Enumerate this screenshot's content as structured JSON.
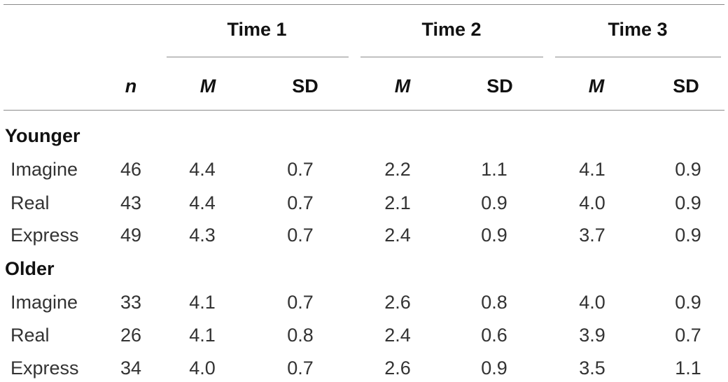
{
  "header": {
    "groups": [
      "Time 1",
      "Time 2",
      "Time 3"
    ],
    "n_label": "n",
    "mean_label": "M",
    "sd_label": "SD"
  },
  "sections": [
    {
      "label": "Younger",
      "rows": [
        {
          "condition": "Imagine",
          "n": "46",
          "t1_m": "4.4",
          "t1_sd": "0.7",
          "t2_m": "2.2",
          "t2_sd": "1.1",
          "t3_m": "4.1",
          "t3_sd": "0.9"
        },
        {
          "condition": "Real",
          "n": "43",
          "t1_m": "4.4",
          "t1_sd": "0.7",
          "t2_m": "2.1",
          "t2_sd": "0.9",
          "t3_m": "4.0",
          "t3_sd": "0.9"
        },
        {
          "condition": "Express",
          "n": "49",
          "t1_m": "4.3",
          "t1_sd": "0.7",
          "t2_m": "2.4",
          "t2_sd": "0.9",
          "t3_m": "3.7",
          "t3_sd": "0.9"
        }
      ]
    },
    {
      "label": "Older",
      "rows": [
        {
          "condition": "Imagine",
          "n": "33",
          "t1_m": "4.1",
          "t1_sd": "0.7",
          "t2_m": "2.6",
          "t2_sd": "0.8",
          "t3_m": "4.0",
          "t3_sd": "0.9"
        },
        {
          "condition": "Real",
          "n": "26",
          "t1_m": "4.1",
          "t1_sd": "0.8",
          "t2_m": "2.4",
          "t2_sd": "0.6",
          "t3_m": "3.9",
          "t3_sd": "0.7"
        },
        {
          "condition": "Express",
          "n": "34",
          "t1_m": "4.0",
          "t1_sd": "0.7",
          "t2_m": "2.6",
          "t2_sd": "0.9",
          "t3_m": "3.5",
          "t3_sd": "1.1"
        }
      ]
    }
  ]
}
